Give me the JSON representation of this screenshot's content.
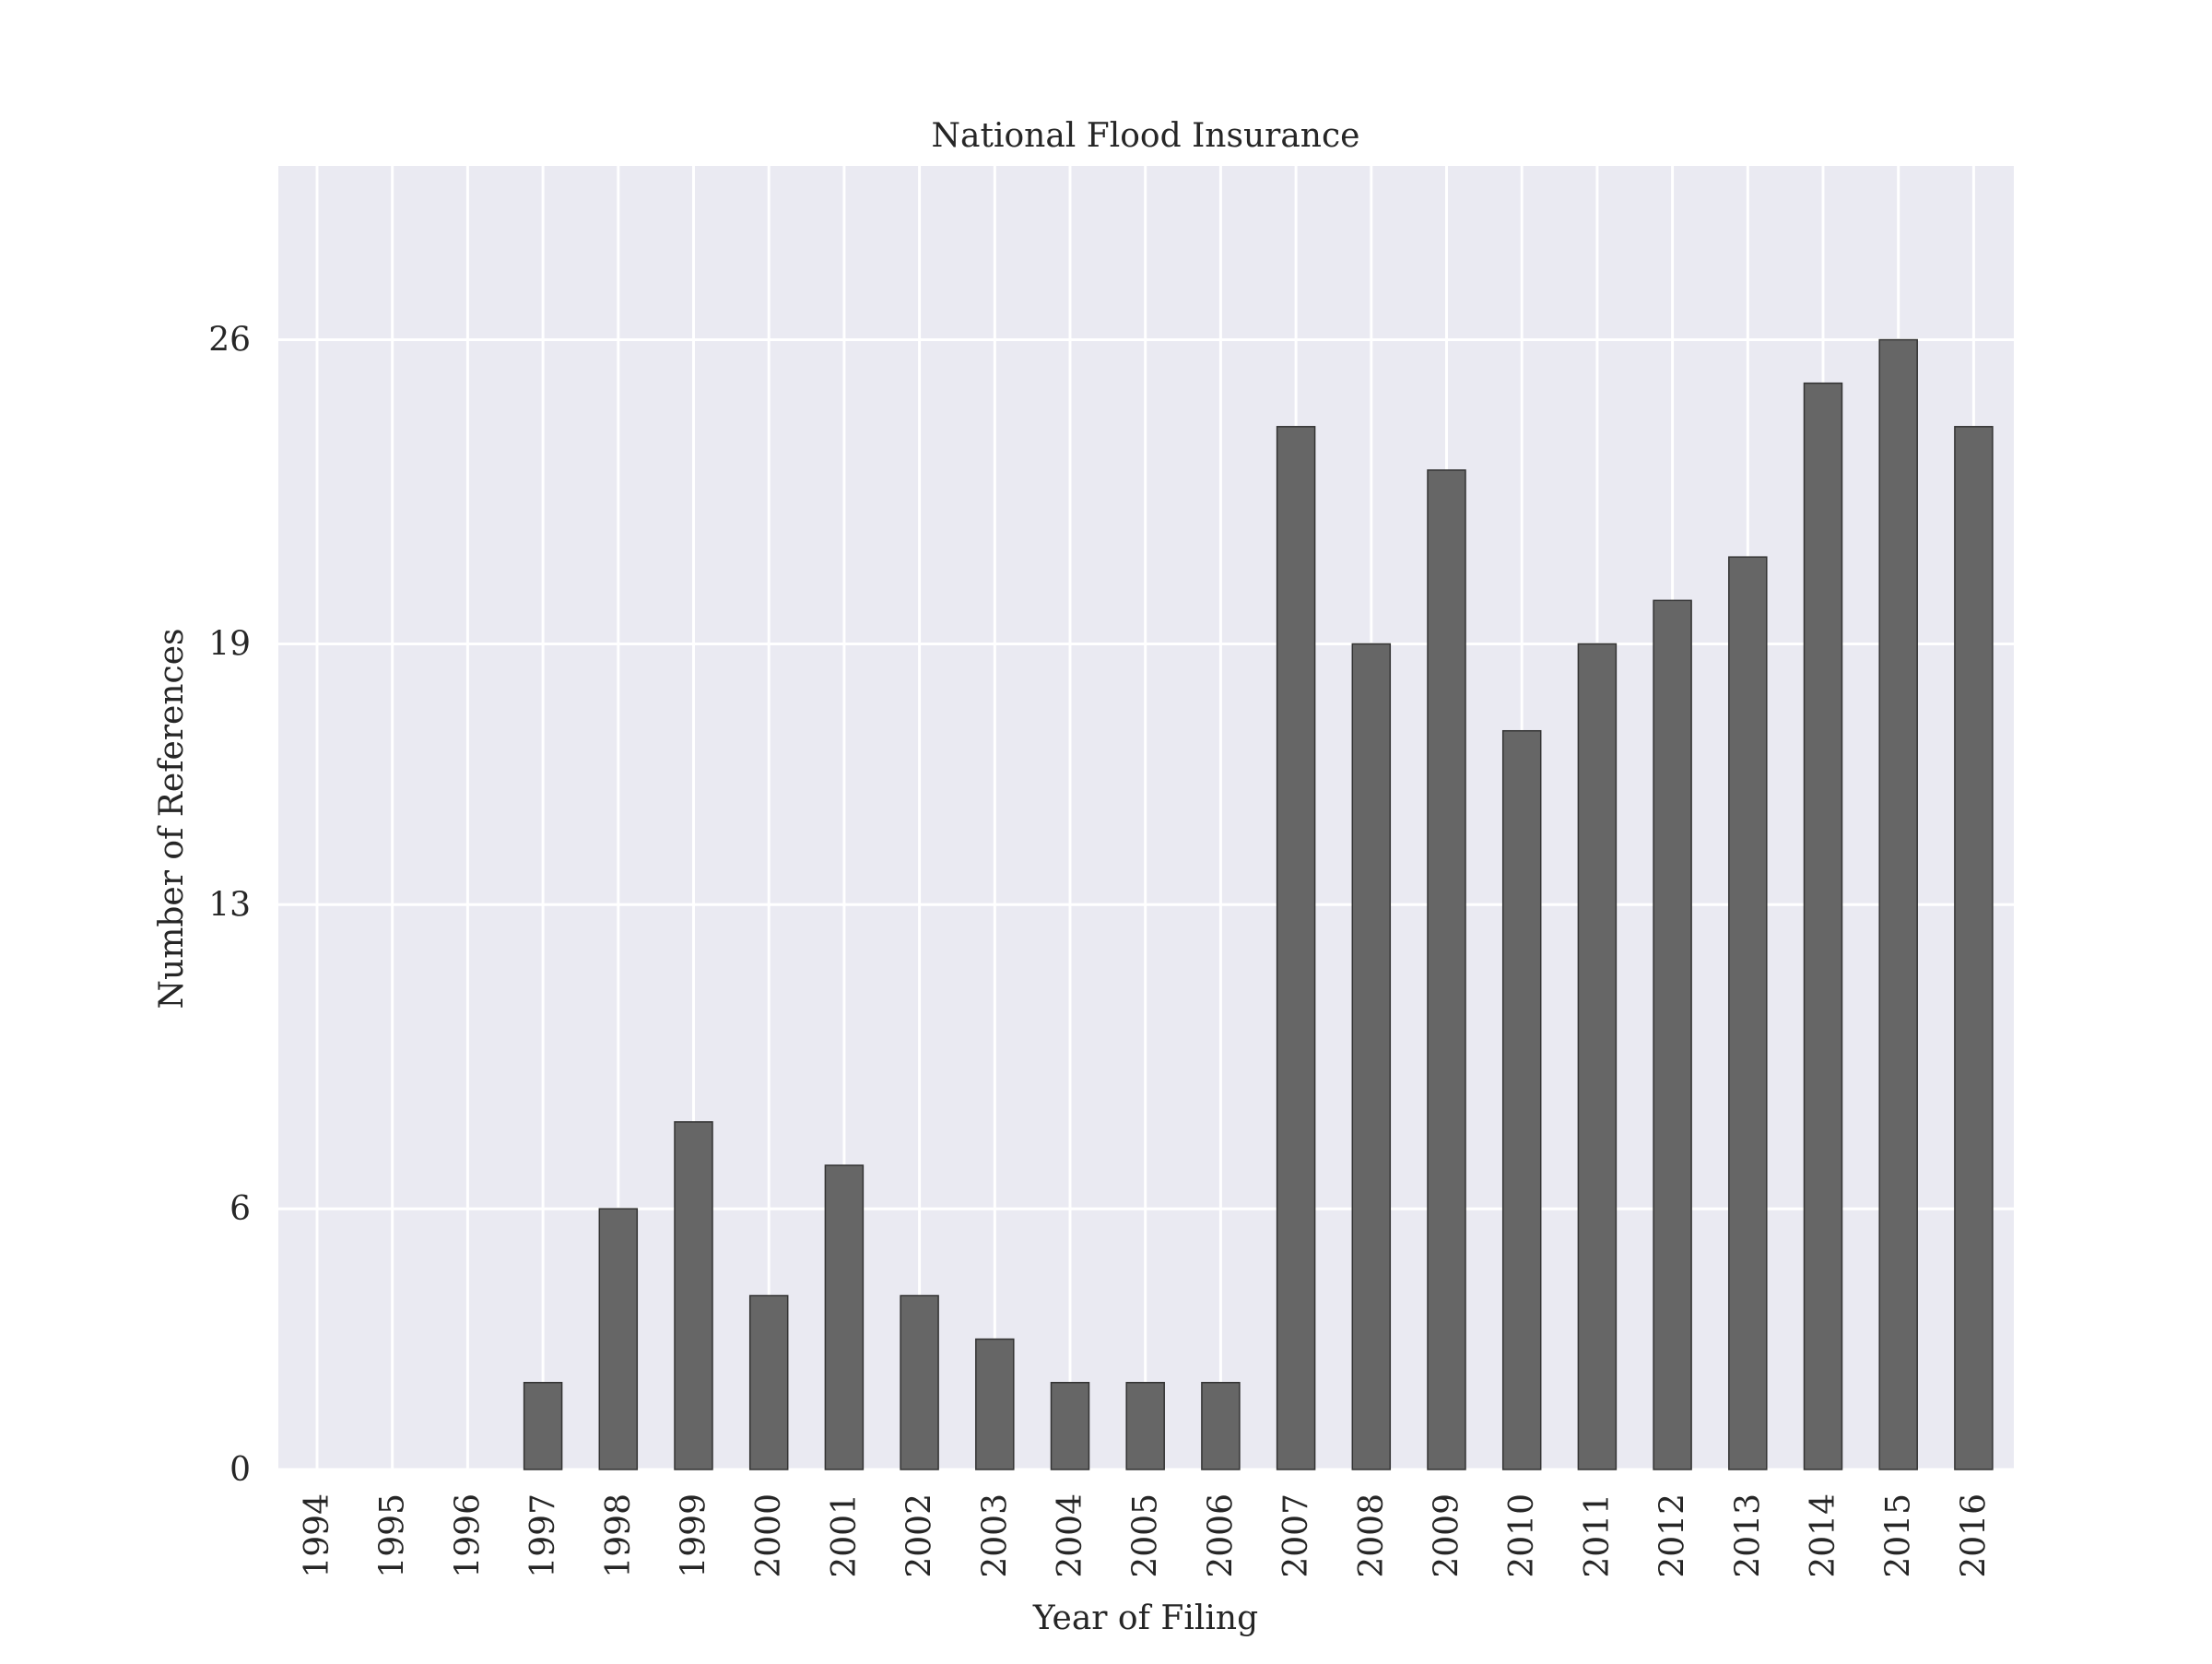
{
  "chart_data": {
    "type": "bar",
    "title": "National Flood Insurance",
    "xlabel": "Year of Filing",
    "ylabel": "Number of References",
    "categories": [
      "1994",
      "1995",
      "1996",
      "1997",
      "1998",
      "1999",
      "2000",
      "2001",
      "2002",
      "2003",
      "2004",
      "2005",
      "2006",
      "2007",
      "2008",
      "2009",
      "2010",
      "2011",
      "2012",
      "2013",
      "2014",
      "2015",
      "2016"
    ],
    "values": [
      0,
      0,
      0,
      2,
      6,
      8,
      4,
      7,
      4,
      3,
      2,
      2,
      2,
      24,
      19,
      23,
      17,
      19,
      20,
      21,
      25,
      26,
      24
    ],
    "yticks": [
      0,
      6,
      13,
      19,
      26
    ],
    "ylim": [
      0,
      30
    ],
    "grid": true,
    "colors": {
      "background": "#eaeaf2",
      "grid": "#ffffff",
      "bar": "#666666",
      "bar_edge": "#333333"
    }
  }
}
